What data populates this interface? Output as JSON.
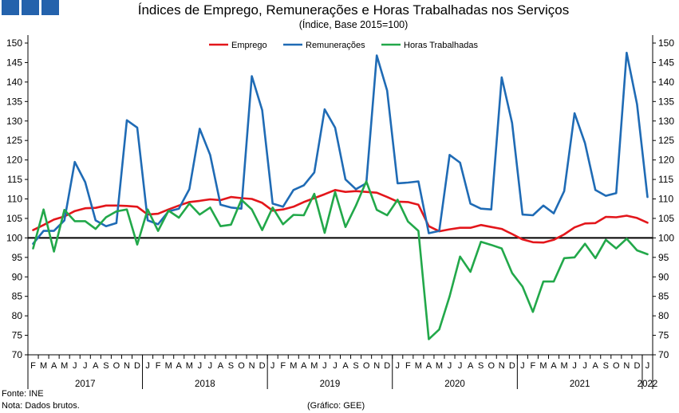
{
  "logo": {
    "icon": "gee-logo-icon",
    "color": "#2462ac"
  },
  "footer": {
    "source": "Fonte: INE",
    "note": "Nota: Dados brutos.",
    "credit": "(Gráfico: GEE)"
  },
  "chart_data": {
    "type": "line",
    "title": "Índices de Emprego, Remunerações e Horas Trabalhadas nos Serviços",
    "subtitle": "(Índice, Base 2015=100)",
    "x": [
      "2017-02",
      "2017-03",
      "2017-04",
      "2017-05",
      "2017-06",
      "2017-07",
      "2017-08",
      "2017-09",
      "2017-10",
      "2017-11",
      "2017-12",
      "2018-01",
      "2018-02",
      "2018-03",
      "2018-04",
      "2018-05",
      "2018-06",
      "2018-07",
      "2018-08",
      "2018-09",
      "2018-10",
      "2018-11",
      "2018-12",
      "2019-01",
      "2019-02",
      "2019-03",
      "2019-04",
      "2019-05",
      "2019-06",
      "2019-07",
      "2019-08",
      "2019-09",
      "2019-10",
      "2019-11",
      "2019-12",
      "2020-01",
      "2020-02",
      "2020-03",
      "2020-04",
      "2020-05",
      "2020-06",
      "2020-07",
      "2020-08",
      "2020-09",
      "2020-10",
      "2020-11",
      "2020-12",
      "2021-01",
      "2021-02",
      "2021-03",
      "2021-04",
      "2021-05",
      "2021-06",
      "2021-07",
      "2021-08",
      "2021-09",
      "2021-10",
      "2021-11",
      "2021-12",
      "2022-01"
    ],
    "x_tick_labels": [
      "F",
      "M",
      "A",
      "M",
      "J",
      "J",
      "A",
      "S",
      "O",
      "N",
      "D",
      "J",
      "F",
      "M",
      "A",
      "M",
      "J",
      "J",
      "A",
      "S",
      "O",
      "N",
      "D",
      "J",
      "F",
      "M",
      "A",
      "M",
      "J",
      "J",
      "A",
      "S",
      "O",
      "N",
      "D",
      "J",
      "F",
      "M",
      "A",
      "M",
      "J",
      "J",
      "A",
      "S",
      "O",
      "N",
      "D",
      "J",
      "F",
      "M",
      "A",
      "M",
      "J",
      "J",
      "A",
      "S",
      "O",
      "N",
      "D",
      "J"
    ],
    "year_labels": [
      "2017",
      "2018",
      "2019",
      "2020",
      "2021",
      "2022"
    ],
    "series": [
      {
        "name": "Emprego",
        "color": "#e3161b",
        "values": [
          102.0,
          103.3,
          104.7,
          105.5,
          106.9,
          107.6,
          107.7,
          108.3,
          108.3,
          108.2,
          108.0,
          106.0,
          106.2,
          107.3,
          108.3,
          109.2,
          109.5,
          109.9,
          109.7,
          110.5,
          110.2,
          110.0,
          109.0,
          107.0,
          107.3,
          108.0,
          109.2,
          110.2,
          111.2,
          112.3,
          111.8,
          112.0,
          111.8,
          111.6,
          110.5,
          109.3,
          109.2,
          108.5,
          103.0,
          101.7,
          102.2,
          102.6,
          102.6,
          103.3,
          102.8,
          102.3,
          101.0,
          99.6,
          98.9,
          98.8,
          99.5,
          100.9,
          102.7,
          103.7,
          103.8,
          105.4,
          105.3,
          105.7,
          105.1,
          103.9
        ]
      },
      {
        "name": "Remunerações",
        "color": "#1f6bb5",
        "values": [
          98.5,
          101.8,
          101.8,
          104.5,
          119.5,
          114.3,
          104.5,
          103.0,
          103.8,
          130.2,
          128.3,
          104.5,
          103.5,
          106.8,
          107.5,
          112.5,
          128.0,
          121.3,
          108.5,
          107.8,
          107.5,
          141.5,
          132.8,
          108.8,
          108.0,
          112.3,
          113.5,
          116.8,
          133.0,
          128.3,
          115.0,
          112.5,
          114.0,
          146.8,
          137.8,
          114.0,
          114.2,
          114.5,
          101.2,
          101.8,
          121.3,
          119.3,
          108.8,
          107.5,
          107.3,
          141.2,
          129.5,
          106.0,
          105.8,
          108.3,
          106.3,
          112.0,
          132.0,
          124.3,
          112.3,
          110.8,
          111.5,
          147.5,
          134.3,
          110.5
        ]
      },
      {
        "name": "Horas Trabalhadas",
        "color": "#22a84a",
        "values": [
          97.3,
          107.3,
          96.5,
          107.2,
          104.3,
          104.3,
          102.3,
          105.3,
          106.8,
          107.3,
          98.3,
          107.3,
          101.8,
          107.0,
          105.2,
          108.8,
          106.0,
          107.8,
          103.0,
          103.4,
          109.8,
          107.3,
          102.0,
          107.8,
          103.5,
          105.9,
          105.8,
          111.3,
          101.3,
          111.8,
          102.8,
          108.3,
          114.5,
          107.2,
          105.8,
          109.8,
          104.2,
          101.8,
          74.0,
          76.5,
          85.0,
          95.2,
          91.3,
          99.0,
          98.2,
          97.3,
          91.0,
          87.5,
          81.0,
          88.8,
          88.8,
          94.8,
          95.0,
          98.5,
          94.8,
          99.5,
          97.3,
          99.8,
          96.8,
          95.8
        ]
      }
    ],
    "ylim": [
      70,
      150
    ],
    "y_ticks": [
      70,
      75,
      80,
      85,
      90,
      95,
      100,
      105,
      110,
      115,
      120,
      125,
      130,
      135,
      140,
      145,
      150
    ],
    "y_axis_both_sides": true,
    "reference_line": {
      "value": 100,
      "color": "#000000"
    },
    "legend_position": "top",
    "grid": false,
    "axis_color": "#000000"
  }
}
